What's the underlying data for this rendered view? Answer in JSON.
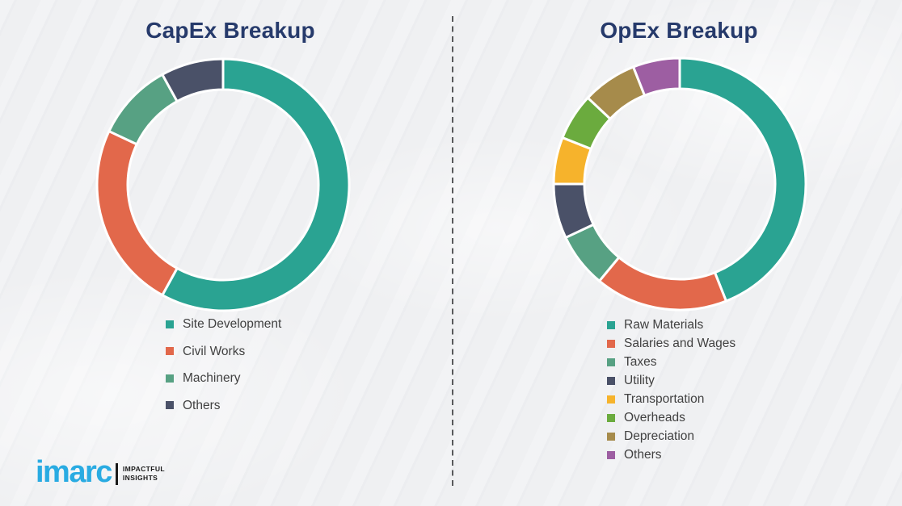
{
  "page": {
    "background_color": "#eff0f2",
    "divider_color": "#58595b",
    "title_color": "#263a6b",
    "legend_text_color": "#414141",
    "slice_gap_color": "#ffffff"
  },
  "chart_data": [
    {
      "type": "pie",
      "subtype": "donut",
      "title": "CapEx Breakup",
      "labels": [
        "Site Development",
        "Civil Works",
        "Machinery",
        "Others"
      ],
      "values": [
        58,
        24,
        10,
        8
      ],
      "unit": "percent-of-total",
      "colors": [
        "#2aa392",
        "#e2684b",
        "#57a183",
        "#4a5168"
      ],
      "start_angle_deg": 0,
      "direction": "clockwise",
      "legend_position": "below-chart-left",
      "data_labels_shown": false
    },
    {
      "type": "pie",
      "subtype": "donut",
      "title": "OpEx Breakup",
      "labels": [
        "Raw Materials",
        "Salaries and Wages",
        "Taxes",
        "Utility",
        "Transportation",
        "Overheads",
        "Depreciation",
        "Others"
      ],
      "values": [
        44,
        17,
        7,
        7,
        6,
        6,
        7,
        6
      ],
      "unit": "percent-of-total",
      "colors": [
        "#2aa392",
        "#e2684b",
        "#57a183",
        "#4a5168",
        "#f6b32c",
        "#6bab3e",
        "#a68b4b",
        "#9d5ea2"
      ],
      "start_angle_deg": 0,
      "direction": "clockwise",
      "legend_position": "below-chart-left",
      "data_labels_shown": false
    }
  ],
  "logo": {
    "brand": "imarc",
    "brand_color": "#29abe2",
    "tagline_line1": "IMPACTFUL",
    "tagline_line2": "INSIGHTS",
    "tagline_color": "#1a1a1a"
  }
}
